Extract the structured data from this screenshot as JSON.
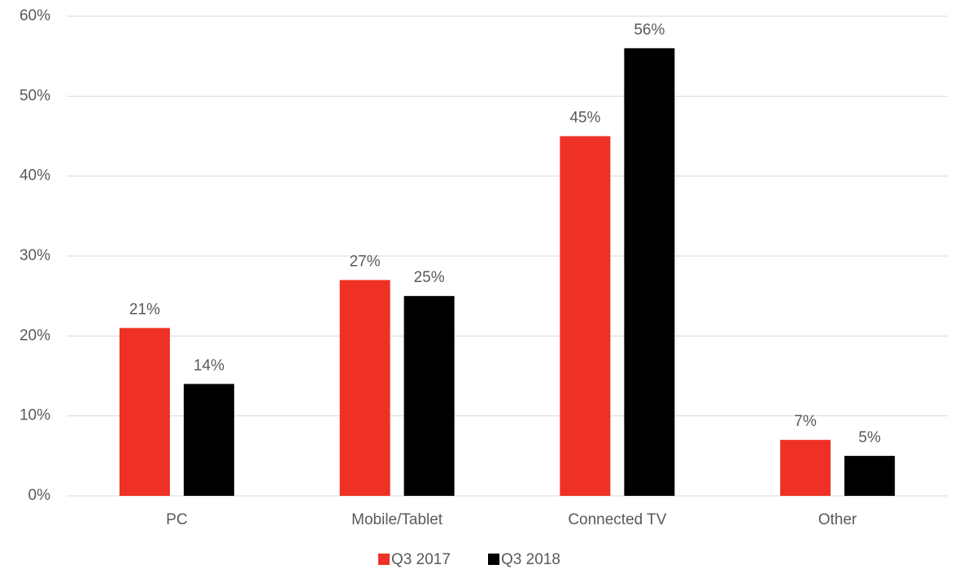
{
  "chart_data": {
    "type": "bar",
    "categories": [
      "PC",
      "Mobile/Tablet",
      "Connected TV",
      "Other"
    ],
    "series": [
      {
        "name": "Q3 2017",
        "color": "#ee3124",
        "values": [
          21,
          27,
          45,
          7
        ],
        "value_labels": [
          "21%",
          "27%",
          "45%",
          "7%"
        ]
      },
      {
        "name": "Q3 2018",
        "color": "#000000",
        "values": [
          14,
          25,
          56,
          5
        ],
        "value_labels": [
          "14%",
          "25%",
          "56%",
          "5%"
        ]
      }
    ],
    "ylim": [
      0,
      60
    ],
    "yticks": [
      {
        "value": 0,
        "label": "0%"
      },
      {
        "value": 10,
        "label": "10%"
      },
      {
        "value": 20,
        "label": "20%"
      },
      {
        "value": 30,
        "label": "30%"
      },
      {
        "value": 40,
        "label": "40%"
      },
      {
        "value": 50,
        "label": "50%"
      },
      {
        "value": 60,
        "label": "60%"
      }
    ],
    "grid": true,
    "legend": "bottom"
  }
}
